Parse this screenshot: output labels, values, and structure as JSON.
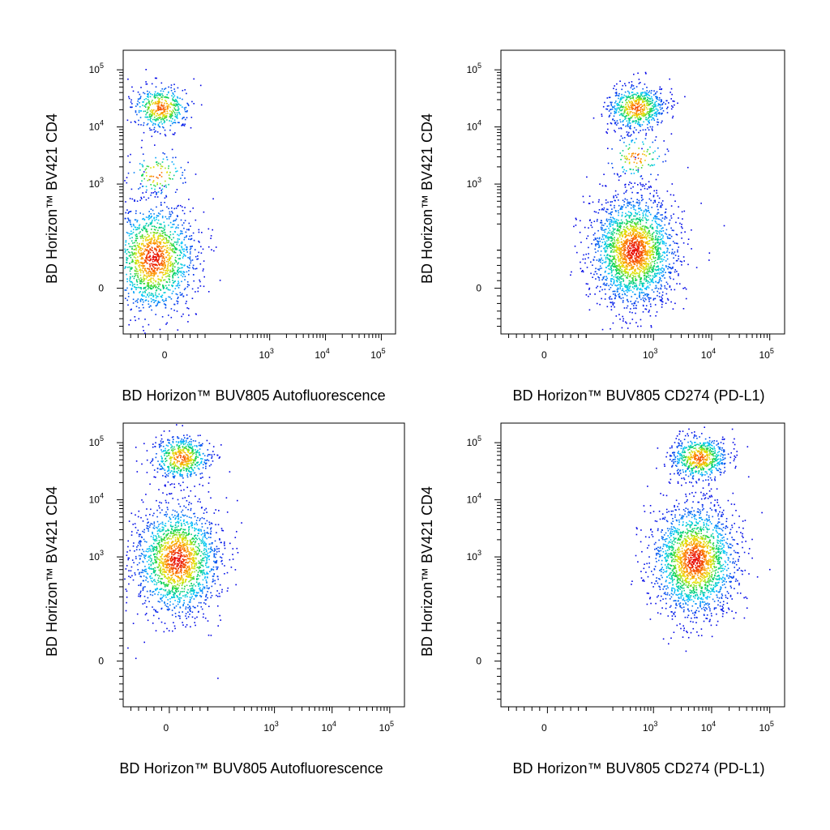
{
  "chart_data": [
    {
      "type": "scatter",
      "xlabel": "BD Horizon™ BUV805 Autofluorescence",
      "ylabel": "BD Horizon™ BV421 CD4",
      "x_scale": "biexponential",
      "y_scale": "biexponential",
      "x_ticks": [
        "0",
        "10^3",
        "10^4",
        "10^5"
      ],
      "y_ticks": [
        "0",
        "10^3",
        "10^4",
        "10^5"
      ],
      "populations": [
        {
          "center": [
            -20,
            22000
          ],
          "count": 450
        },
        {
          "center": [
            -40,
            80
          ],
          "count": 1500
        },
        {
          "center": [
            -30,
            1500
          ],
          "count": 120
        }
      ]
    },
    {
      "type": "scatter",
      "xlabel": "BD Horizon™ BUV805 CD274 (PD-L1)",
      "ylabel": "BD Horizon™ BV421 CD4",
      "x_scale": "biexponential",
      "y_scale": "biexponential",
      "x_ticks": [
        "0",
        "10^3",
        "10^4",
        "10^5"
      ],
      "y_ticks": [
        "0",
        "10^3",
        "10^4",
        "10^5"
      ],
      "populations": [
        {
          "center": [
            500,
            22000
          ],
          "count": 650
        },
        {
          "center": [
            450,
            100
          ],
          "count": 2200
        },
        {
          "center": [
            500,
            3000
          ],
          "count": 120
        }
      ]
    },
    {
      "type": "scatter",
      "xlabel": "BD Horizon™ BUV805 Autofluorescence",
      "ylabel": "BD Horizon™ BV421 CD4",
      "x_scale": "biexponential",
      "y_scale": "biexponential",
      "x_ticks": [
        "0",
        "10^3",
        "10^4",
        "10^5"
      ],
      "y_ticks": [
        "0",
        "10^3",
        "10^4",
        "10^5"
      ],
      "populations": [
        {
          "center": [
            30,
            55000
          ],
          "count": 550
        },
        {
          "center": [
            20,
            900
          ],
          "count": 1800
        }
      ]
    },
    {
      "type": "scatter",
      "xlabel": "BD Horizon™ BUV805 CD274 (PD-L1)",
      "ylabel": "BD Horizon™ BV421 CD4",
      "x_scale": "biexponential",
      "y_scale": "biexponential",
      "x_ticks": [
        "0",
        "10^3",
        "10^4",
        "10^5"
      ],
      "y_ticks": [
        "0",
        "10^3",
        "10^4",
        "10^5"
      ],
      "populations": [
        {
          "center": [
            6000,
            55000
          ],
          "count": 650
        },
        {
          "center": [
            5000,
            900
          ],
          "count": 2000
        }
      ]
    }
  ]
}
